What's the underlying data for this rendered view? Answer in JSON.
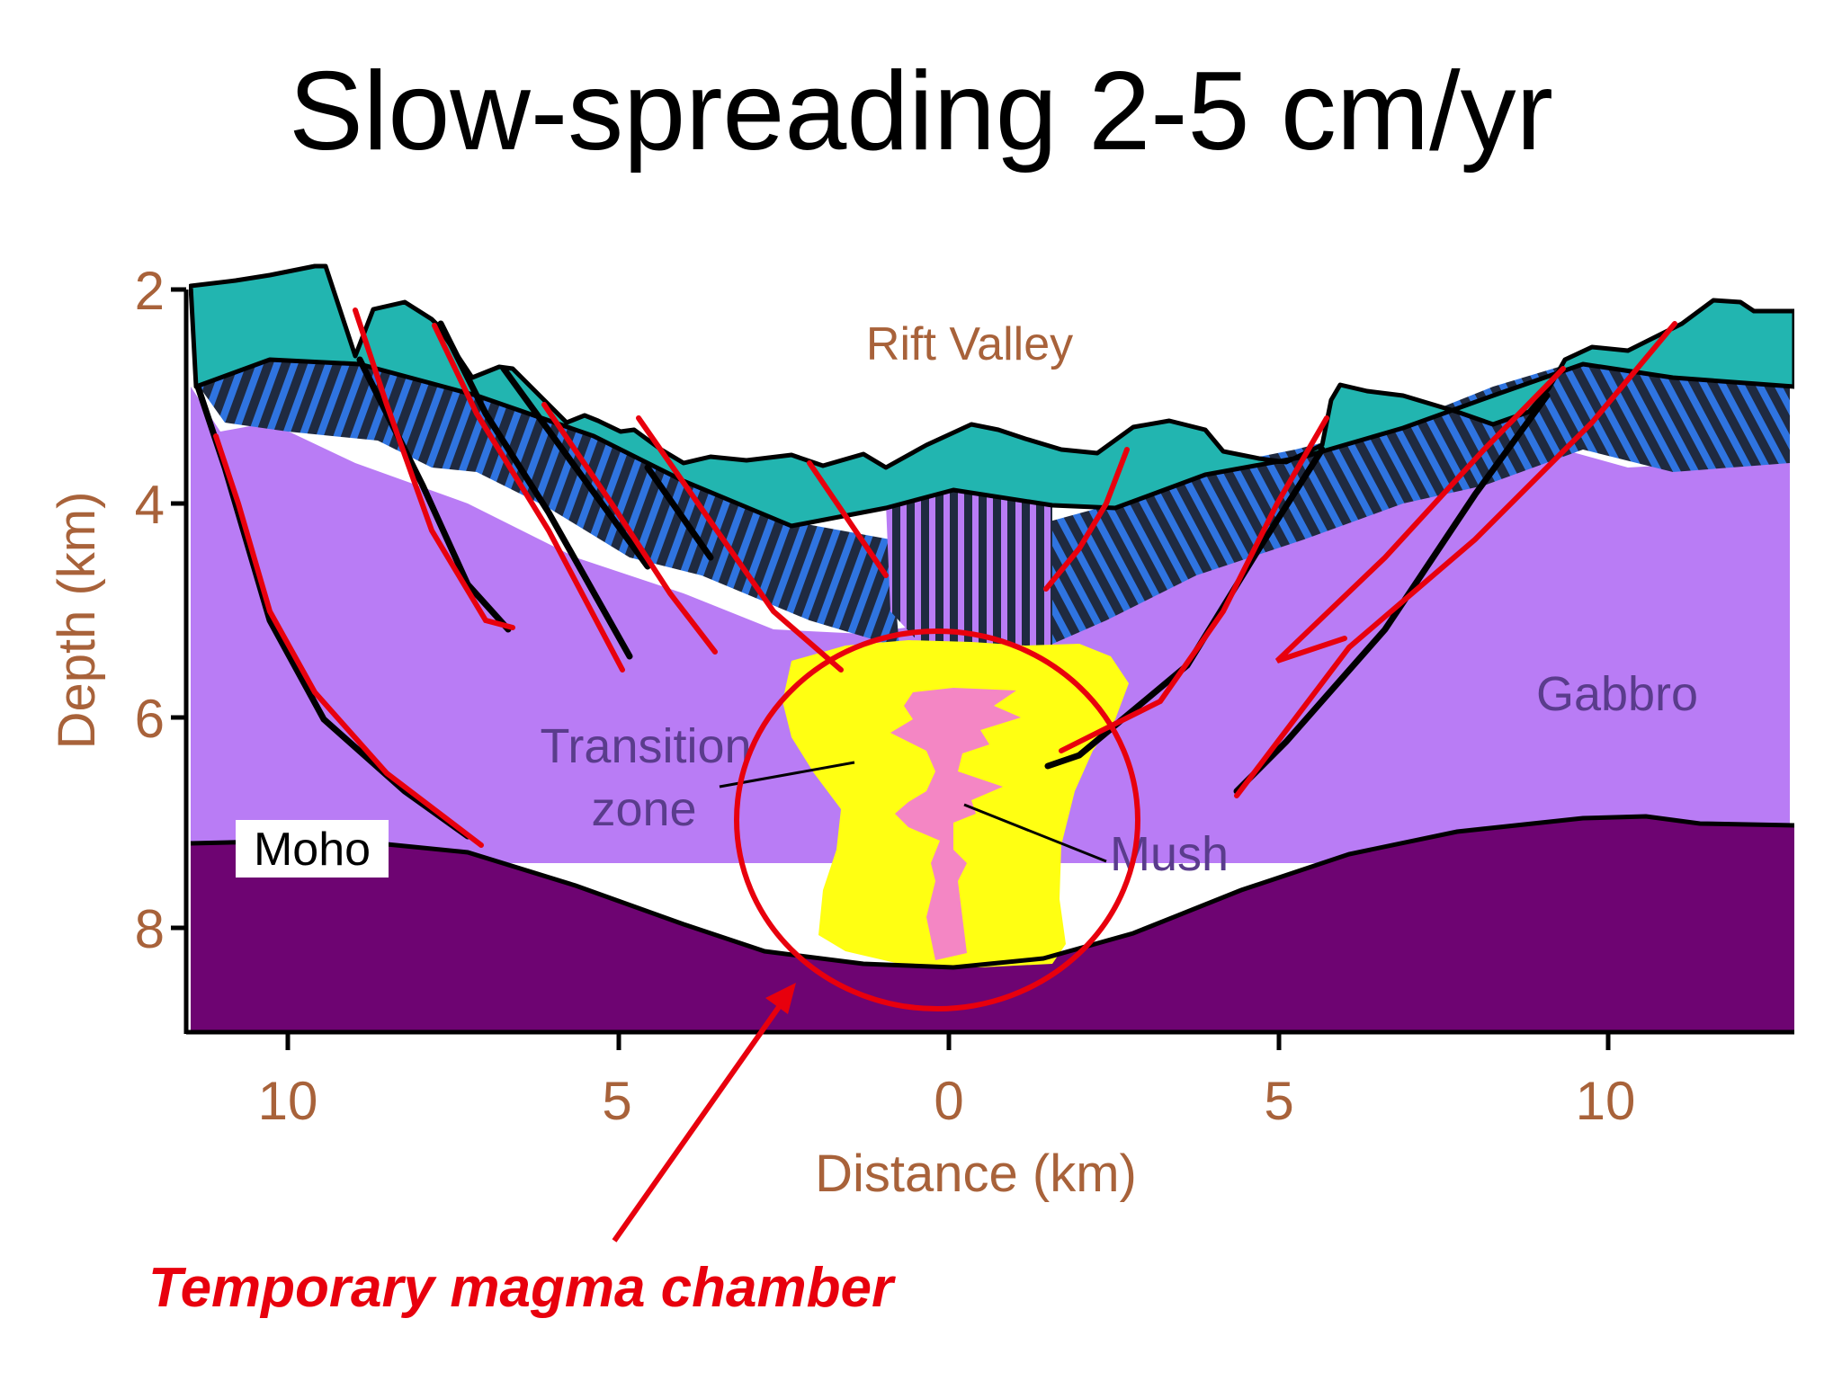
{
  "title": "Slow-spreading 2-5 cm/yr",
  "axes": {
    "y_label": "Depth (km)",
    "y_ticks": [
      "2",
      "4",
      "6",
      "8"
    ],
    "x_label": "Distance (km)",
    "x_ticks": [
      "10",
      "5",
      "0",
      "5",
      "10"
    ]
  },
  "labels": {
    "rift_valley": "Rift Valley",
    "gabbro": "Gabbro",
    "transition_line1": "Transition",
    "transition_line2": "zone",
    "mush": "Mush",
    "moho": "Moho"
  },
  "annotation": {
    "caption": "Temporary magma chamber"
  },
  "colors": {
    "basalt": "#22b5b0",
    "dikes": "#1f2a40",
    "dike_blue": "#2f74e0",
    "gabbro": "#b97cf5",
    "mantle": "#6e0472",
    "mush_zone": "#ffff12",
    "melt": "#f486c4",
    "annotation_red": "#e8000d"
  }
}
